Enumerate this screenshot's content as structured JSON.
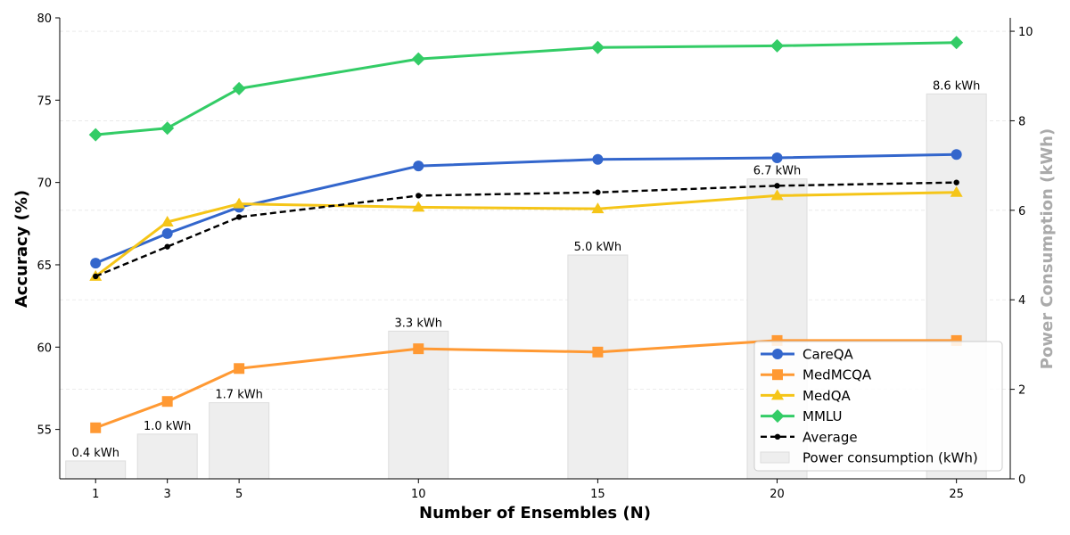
{
  "chart_data": {
    "type": "line",
    "xlabel": "Number of Ensembles (N)",
    "ylabel": "Accuracy (%)",
    "y2label": "Power Consumption (kWh)",
    "x": [
      1,
      3,
      5,
      10,
      15,
      20,
      25
    ],
    "x_ticks": [
      "1",
      "3",
      "5",
      "10",
      "15",
      "20",
      "25"
    ],
    "ylim": [
      52,
      80
    ],
    "y_ticks": [
      55,
      60,
      65,
      70,
      75,
      80
    ],
    "y2lim": [
      0,
      10.3
    ],
    "y2_ticks": [
      0,
      2,
      4,
      6,
      8,
      10
    ],
    "grid": true,
    "legend_position": "lower-right",
    "series": [
      {
        "name": "CareQA",
        "color": "#3366cc",
        "marker": "circle",
        "style": "solid",
        "values": [
          65.1,
          66.9,
          68.5,
          71.0,
          71.4,
          71.5,
          71.7
        ]
      },
      {
        "name": "MedMCQA",
        "color": "#ff9933",
        "marker": "square",
        "style": "solid",
        "values": [
          55.1,
          56.7,
          58.7,
          59.9,
          59.7,
          60.4,
          60.4
        ]
      },
      {
        "name": "MedQA",
        "color": "#f5c518",
        "marker": "triangle",
        "style": "solid",
        "values": [
          64.3,
          67.6,
          68.7,
          68.5,
          68.4,
          69.2,
          69.4
        ]
      },
      {
        "name": "MMLU",
        "color": "#33cc66",
        "marker": "diamond",
        "style": "solid",
        "values": [
          72.9,
          73.3,
          75.7,
          77.5,
          78.2,
          78.3,
          78.5
        ]
      },
      {
        "name": "Average",
        "color": "#000000",
        "marker": "dot",
        "style": "dashed",
        "values": [
          64.3,
          66.1,
          67.9,
          69.2,
          69.4,
          69.8,
          70.0
        ]
      }
    ],
    "bars": {
      "name": "Power consumption (kWh)",
      "color": "#eeeeee",
      "values": [
        0.4,
        1.0,
        1.7,
        3.3,
        5.0,
        6.7,
        8.6
      ],
      "labels": [
        "0.4 kWh",
        "1.0 kWh",
        "1.7 kWh",
        "3.3 kWh",
        "5.0 kWh",
        "6.7 kWh",
        "8.6 kWh"
      ]
    }
  }
}
